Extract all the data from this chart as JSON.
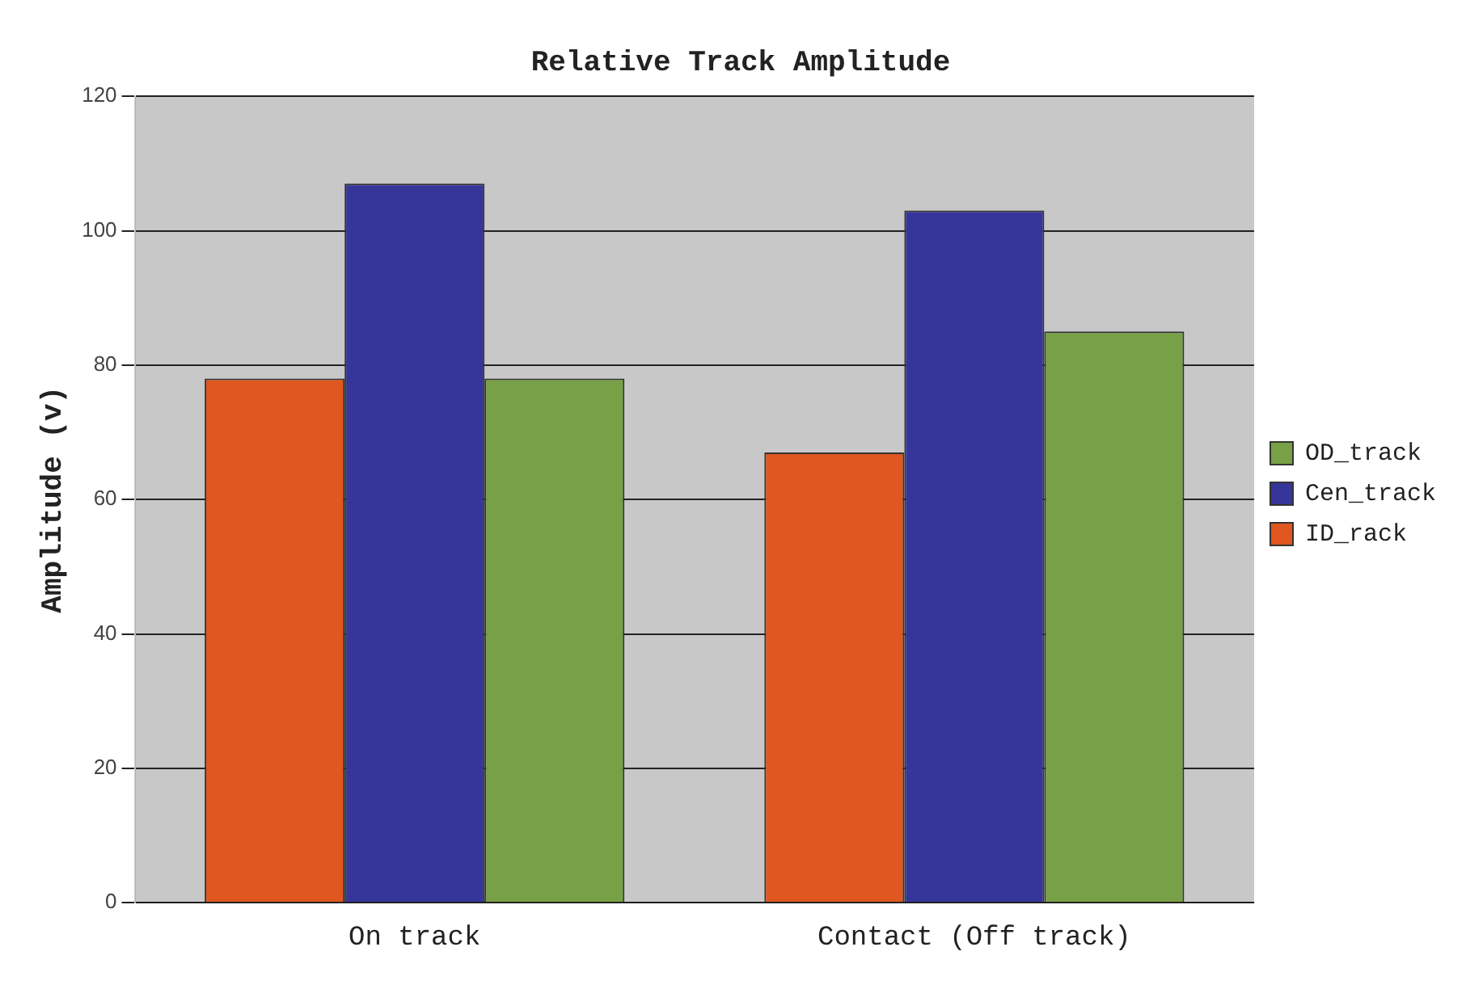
{
  "chart_data": {
    "type": "bar",
    "title": "Relative Track Amplitude",
    "ylabel": "Amplitude (v)",
    "categories": [
      "On track",
      "Contact (Off track)"
    ],
    "series": [
      {
        "name": "ID_rack",
        "color": "#e0571f",
        "values": [
          78,
          67
        ]
      },
      {
        "name": "Cen_track",
        "color": "#36369a",
        "values": [
          107,
          103
        ]
      },
      {
        "name": "OD_track",
        "color": "#78a046",
        "values": [
          78,
          85
        ]
      }
    ],
    "ylim": [
      0,
      120
    ],
    "yticks": [
      0,
      20,
      40,
      60,
      80,
      100,
      120
    ],
    "grid": "y",
    "legend": "right"
  }
}
